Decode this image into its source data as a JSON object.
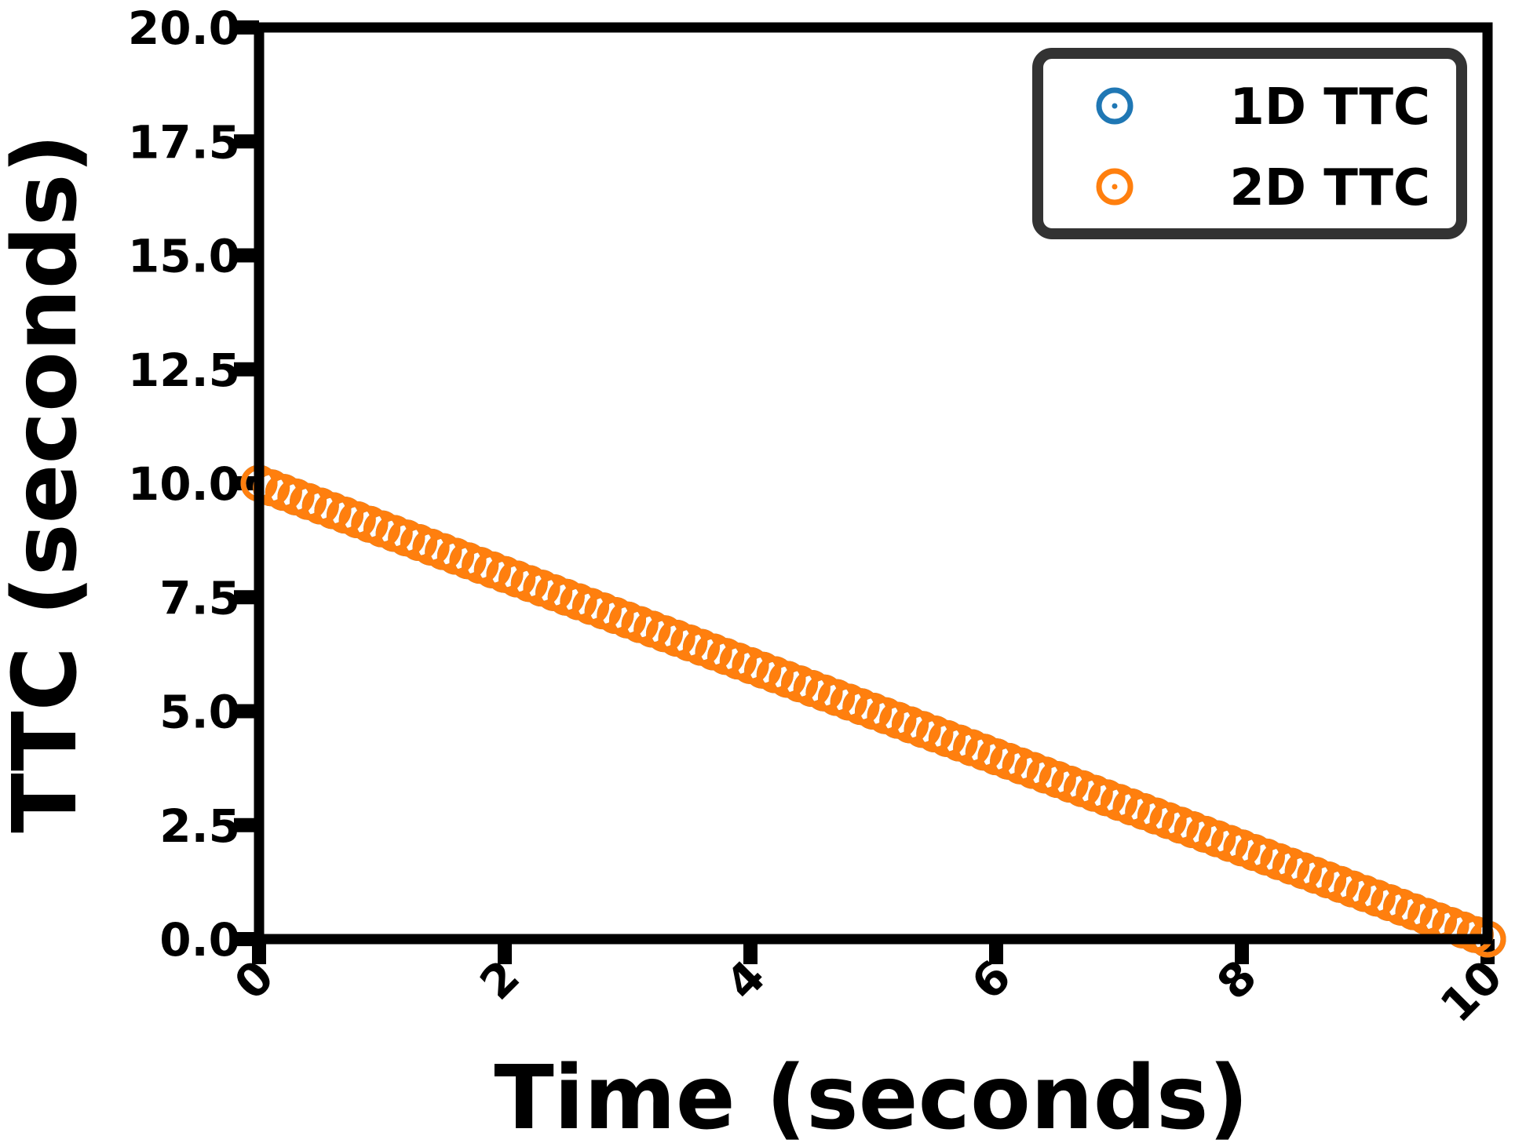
{
  "chart_data": {
    "type": "scatter",
    "xlabel": "Time (seconds)",
    "ylabel": "TTC (seconds)",
    "xlim": [
      0,
      10
    ],
    "ylim": [
      0,
      20
    ],
    "xticks": [
      "0",
      "2",
      "4",
      "6",
      "8",
      "10"
    ],
    "yticks": [
      "0.0",
      "2.5",
      "5.0",
      "7.5",
      "10.0",
      "12.5",
      "15.0",
      "17.5",
      "20.0"
    ],
    "grid": false,
    "legend_position": "top-right",
    "marker": "hollow circle with center dot",
    "series": [
      {
        "name": "1D TTC",
        "color": "#1f77b4",
        "x_start": 0,
        "x_end": 10,
        "x_step": 0.1,
        "y_start": 10,
        "y_end": 0,
        "note_visible": "hidden beneath 2D TTC markers"
      },
      {
        "name": "2D TTC",
        "color": "#ff7f0e",
        "x_start": 0,
        "x_end": 10,
        "x_step": 0.1,
        "y_start": 10,
        "y_end": 0
      }
    ]
  }
}
